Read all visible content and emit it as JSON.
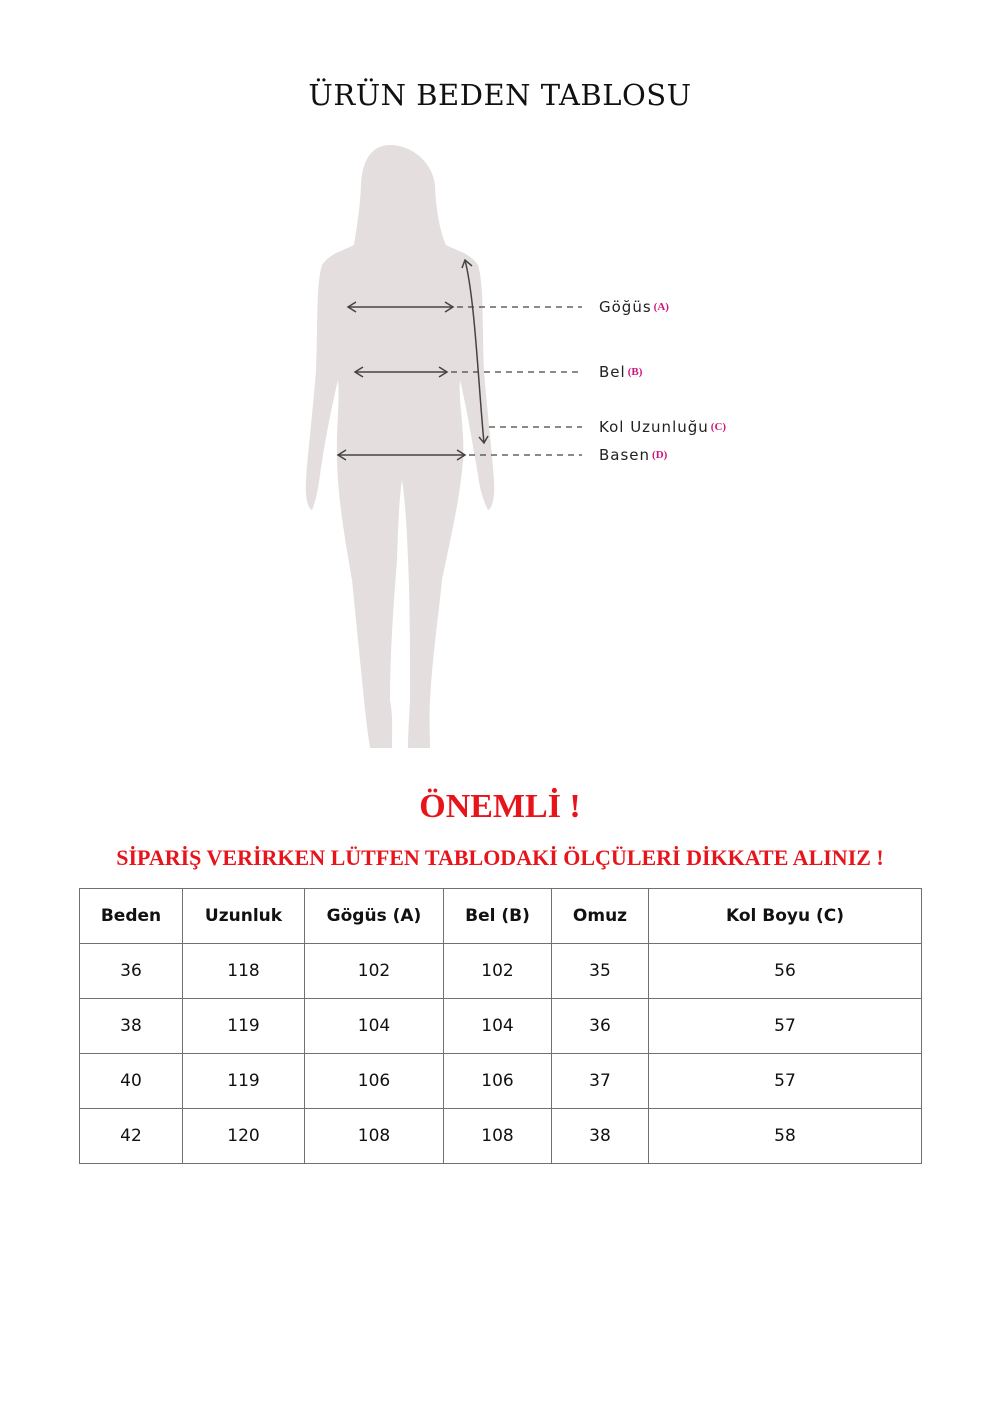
{
  "title": "ÜRÜN BEDEN TABLOSU",
  "figure": {
    "silhouette_color": "#e4dedf",
    "labels": [
      {
        "text": "Göğüs",
        "code": "(A)"
      },
      {
        "text": "Bel",
        "code": "(B)"
      },
      {
        "text": "Kol Uzunluğu",
        "code": "(C)"
      },
      {
        "text": "Basen",
        "code": "(D)"
      }
    ]
  },
  "important": "ÖNEMLİ !",
  "warning": "SİPARİŞ VERİRKEN LÜTFEN TABLODAKİ ÖLÇÜLERİ DİKKATE ALINIZ !",
  "accent_color": "#e8141b",
  "table": {
    "headers": [
      "Beden",
      "Uzunluk",
      "Gögüs (A)",
      "Bel (B)",
      "Omuz",
      "Kol Boyu (C)"
    ],
    "rows": [
      [
        "36",
        "118",
        "102",
        "102",
        "35",
        "56"
      ],
      [
        "38",
        "119",
        "104",
        "104",
        "36",
        "57"
      ],
      [
        "40",
        "119",
        "106",
        "106",
        "37",
        "57"
      ],
      [
        "42",
        "120",
        "108",
        "108",
        "38",
        "58"
      ]
    ]
  }
}
